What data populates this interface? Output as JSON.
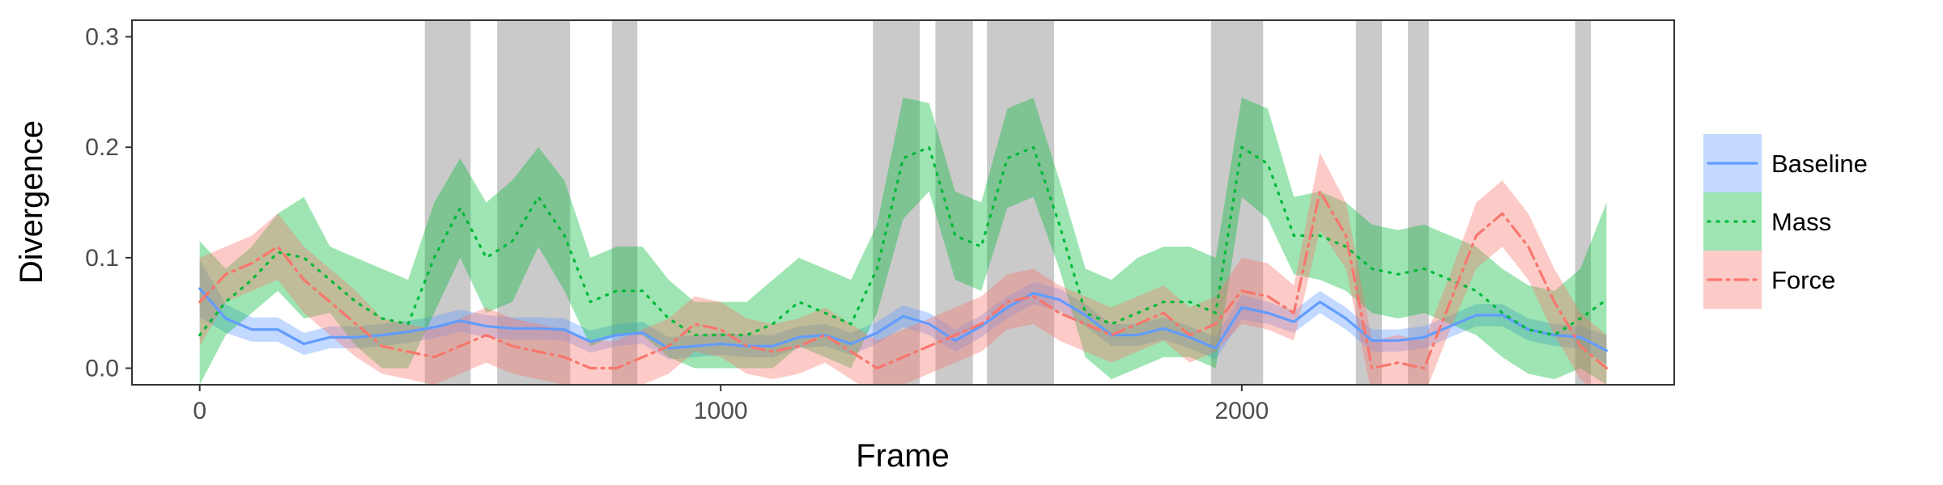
{
  "chart_data": {
    "type": "line",
    "xlabel": "Frame",
    "ylabel": "Divergence",
    "xlim": [
      -130,
      2830
    ],
    "ylim": [
      -0.015,
      0.315
    ],
    "x_ticks": [
      0,
      1000,
      2000
    ],
    "y_ticks": [
      0.0,
      0.1,
      0.2,
      0.3
    ],
    "x_tick_labels": [
      "0",
      "1000",
      "2000"
    ],
    "y_tick_labels": [
      "0.0",
      "0.1",
      "0.2",
      "0.3"
    ],
    "grid": false,
    "legend_position": "right",
    "shaded_regions": [
      [
        432,
        520
      ],
      [
        571,
        711
      ],
      [
        791,
        840
      ],
      [
        1292,
        1382
      ],
      [
        1412,
        1484
      ],
      [
        1511,
        1640
      ],
      [
        1941,
        2041
      ],
      [
        2219,
        2269
      ],
      [
        2319,
        2359
      ],
      [
        2640,
        2670
      ]
    ],
    "x": [
      0,
      50,
      100,
      150,
      200,
      250,
      300,
      350,
      400,
      450,
      500,
      550,
      600,
      650,
      700,
      750,
      800,
      850,
      900,
      950,
      1000,
      1050,
      1100,
      1150,
      1200,
      1250,
      1300,
      1350,
      1400,
      1450,
      1500,
      1550,
      1600,
      1650,
      1700,
      1750,
      1800,
      1850,
      1900,
      1950,
      2000,
      2050,
      2100,
      2150,
      2200,
      2250,
      2300,
      2350,
      2400,
      2450,
      2500,
      2550,
      2600,
      2650,
      2700
    ],
    "series": [
      {
        "name": "Baseline",
        "color": "#619CFF",
        "line_style": "solid",
        "values": [
          0.072,
          0.045,
          0.035,
          0.035,
          0.022,
          0.028,
          0.028,
          0.03,
          0.033,
          0.037,
          0.043,
          0.038,
          0.036,
          0.036,
          0.035,
          0.024,
          0.03,
          0.032,
          0.018,
          0.02,
          0.022,
          0.02,
          0.02,
          0.028,
          0.03,
          0.022,
          0.032,
          0.047,
          0.04,
          0.025,
          0.038,
          0.055,
          0.068,
          0.062,
          0.048,
          0.03,
          0.03,
          0.036,
          0.028,
          0.018,
          0.055,
          0.05,
          0.042,
          0.06,
          0.045,
          0.025,
          0.025,
          0.028,
          0.038,
          0.048,
          0.048,
          0.035,
          0.03,
          0.028,
          0.016
        ],
        "upper": [
          0.098,
          0.058,
          0.046,
          0.046,
          0.032,
          0.038,
          0.038,
          0.04,
          0.043,
          0.047,
          0.053,
          0.048,
          0.046,
          0.046,
          0.045,
          0.034,
          0.04,
          0.042,
          0.028,
          0.03,
          0.032,
          0.03,
          0.03,
          0.038,
          0.04,
          0.032,
          0.042,
          0.057,
          0.05,
          0.035,
          0.048,
          0.065,
          0.078,
          0.072,
          0.058,
          0.04,
          0.04,
          0.046,
          0.038,
          0.028,
          0.066,
          0.06,
          0.052,
          0.07,
          0.055,
          0.035,
          0.035,
          0.038,
          0.048,
          0.058,
          0.058,
          0.045,
          0.04,
          0.038,
          0.03
        ],
        "lower": [
          0.046,
          0.032,
          0.024,
          0.024,
          0.012,
          0.018,
          0.018,
          0.02,
          0.023,
          0.027,
          0.033,
          0.028,
          0.026,
          0.026,
          0.025,
          0.014,
          0.02,
          0.022,
          0.008,
          0.01,
          0.012,
          0.01,
          0.01,
          0.018,
          0.02,
          0.012,
          0.022,
          0.037,
          0.03,
          0.015,
          0.028,
          0.045,
          0.058,
          0.052,
          0.038,
          0.02,
          0.02,
          0.026,
          0.018,
          0.008,
          0.044,
          0.04,
          0.032,
          0.05,
          0.035,
          0.015,
          0.015,
          0.018,
          0.028,
          0.038,
          0.038,
          0.025,
          0.02,
          0.018,
          0.004
        ]
      },
      {
        "name": "Mass",
        "color": "#00BA38",
        "line_style": "dotted",
        "values": [
          0.03,
          0.06,
          0.08,
          0.105,
          0.1,
          0.08,
          0.06,
          0.045,
          0.04,
          0.1,
          0.145,
          0.1,
          0.115,
          0.155,
          0.12,
          0.06,
          0.07,
          0.07,
          0.045,
          0.03,
          0.03,
          0.03,
          0.04,
          0.06,
          0.05,
          0.04,
          0.09,
          0.19,
          0.2,
          0.12,
          0.11,
          0.19,
          0.2,
          0.13,
          0.05,
          0.04,
          0.05,
          0.06,
          0.06,
          0.05,
          0.2,
          0.185,
          0.12,
          0.12,
          0.11,
          0.09,
          0.085,
          0.09,
          0.08,
          0.07,
          0.05,
          0.035,
          0.03,
          0.045,
          0.062
        ],
        "upper": [
          0.115,
          0.09,
          0.11,
          0.14,
          0.155,
          0.11,
          0.1,
          0.09,
          0.08,
          0.15,
          0.19,
          0.15,
          0.17,
          0.2,
          0.17,
          0.1,
          0.11,
          0.11,
          0.08,
          0.06,
          0.06,
          0.06,
          0.08,
          0.1,
          0.09,
          0.08,
          0.13,
          0.245,
          0.24,
          0.16,
          0.15,
          0.235,
          0.245,
          0.17,
          0.09,
          0.08,
          0.1,
          0.11,
          0.11,
          0.1,
          0.245,
          0.235,
          0.155,
          0.16,
          0.15,
          0.13,
          0.125,
          0.13,
          0.12,
          0.11,
          0.09,
          0.075,
          0.07,
          0.09,
          0.15
        ],
        "lower": [
          -0.015,
          0.03,
          0.05,
          0.07,
          0.045,
          0.05,
          0.02,
          0.0,
          0.0,
          0.05,
          0.1,
          0.05,
          0.06,
          0.11,
          0.07,
          0.02,
          0.03,
          0.03,
          0.01,
          0.0,
          0.0,
          0.0,
          0.0,
          0.02,
          0.01,
          0.0,
          0.05,
          0.135,
          0.16,
          0.08,
          0.07,
          0.145,
          0.155,
          0.09,
          0.01,
          -0.01,
          0.0,
          0.01,
          0.01,
          0.0,
          0.155,
          0.135,
          0.085,
          0.08,
          0.07,
          0.05,
          0.045,
          0.05,
          0.04,
          0.03,
          0.01,
          -0.005,
          -0.01,
          0.0,
          -0.015
        ]
      },
      {
        "name": "Force",
        "color": "#F8766D",
        "line_style": "dashdot",
        "values": [
          0.06,
          0.085,
          0.095,
          0.11,
          0.08,
          0.06,
          0.04,
          0.02,
          0.015,
          0.01,
          0.02,
          0.03,
          0.02,
          0.015,
          0.01,
          0.0,
          0.0,
          0.01,
          0.02,
          0.04,
          0.035,
          0.02,
          0.015,
          0.02,
          0.03,
          0.015,
          0.0,
          0.01,
          0.02,
          0.03,
          0.04,
          0.06,
          0.065,
          0.05,
          0.04,
          0.03,
          0.04,
          0.05,
          0.03,
          0.04,
          0.07,
          0.065,
          0.05,
          0.16,
          0.12,
          0.0,
          0.005,
          0.0,
          0.06,
          0.12,
          0.14,
          0.11,
          0.06,
          0.02,
          0.0
        ],
        "upper": [
          0.1,
          0.11,
          0.12,
          0.14,
          0.11,
          0.09,
          0.07,
          0.045,
          0.04,
          0.035,
          0.045,
          0.055,
          0.045,
          0.04,
          0.035,
          0.025,
          0.025,
          0.035,
          0.045,
          0.065,
          0.06,
          0.045,
          0.04,
          0.045,
          0.055,
          0.04,
          0.025,
          0.035,
          0.045,
          0.055,
          0.065,
          0.085,
          0.09,
          0.075,
          0.065,
          0.055,
          0.065,
          0.075,
          0.055,
          0.065,
          0.1,
          0.095,
          0.075,
          0.195,
          0.15,
          0.025,
          0.03,
          0.025,
          0.085,
          0.15,
          0.17,
          0.14,
          0.09,
          0.05,
          0.03
        ],
        "lower": [
          0.02,
          0.06,
          0.07,
          0.08,
          0.05,
          0.03,
          0.01,
          -0.005,
          -0.01,
          -0.015,
          -0.005,
          0.005,
          -0.005,
          -0.01,
          -0.015,
          -0.025,
          -0.025,
          -0.015,
          -0.005,
          0.015,
          0.01,
          -0.005,
          -0.01,
          -0.005,
          0.005,
          -0.01,
          -0.025,
          -0.015,
          -0.005,
          0.005,
          0.015,
          0.035,
          0.04,
          0.025,
          0.015,
          0.005,
          0.015,
          0.025,
          0.005,
          0.015,
          0.04,
          0.035,
          0.025,
          0.125,
          0.09,
          -0.025,
          -0.02,
          -0.025,
          0.035,
          0.09,
          0.11,
          0.08,
          0.03,
          -0.01,
          -0.03
        ]
      }
    ]
  }
}
